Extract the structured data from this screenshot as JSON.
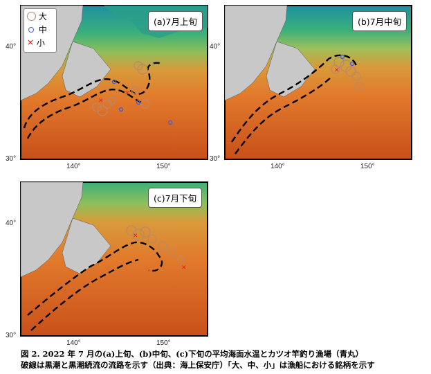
{
  "legend": {
    "items": [
      {
        "symbol": "circle-large",
        "label": "大",
        "color": "#b8896a"
      },
      {
        "symbol": "circle-small",
        "label": "中",
        "color": "#4a5fd0"
      },
      {
        "symbol": "cross",
        "label": "小",
        "color": "#e02020"
      }
    ]
  },
  "panels": [
    {
      "id": "a",
      "title": "(a)7月上旬"
    },
    {
      "id": "b",
      "title": "(b)7月中旬"
    },
    {
      "id": "c",
      "title": "(c)7月下旬"
    }
  ],
  "axes": {
    "x_ticks": [
      "140°",
      "150°"
    ],
    "y_ticks": [
      "40°",
      "30°"
    ]
  },
  "colors": {
    "ocean_warm": "#e27a2c",
    "ocean_hot": "#c8501a",
    "ocean_mid": "#d99a3a",
    "ocean_cool": "#3bb07a",
    "ocean_cold": "#1f8fa0",
    "land": "#c8c8c8",
    "kuroshio": "#000000"
  },
  "caption": {
    "line1": "図 2. 2022 年 7 月の(a)上旬、(b)中旬、(c)下旬の平均海面水温とカツオ竿釣り漁場（青丸）",
    "line2": "破線は黒潮と黒潮続流の流路を示す（出典：海上保安庁）「大、中、小」は漁船における銘柄を示す"
  }
}
